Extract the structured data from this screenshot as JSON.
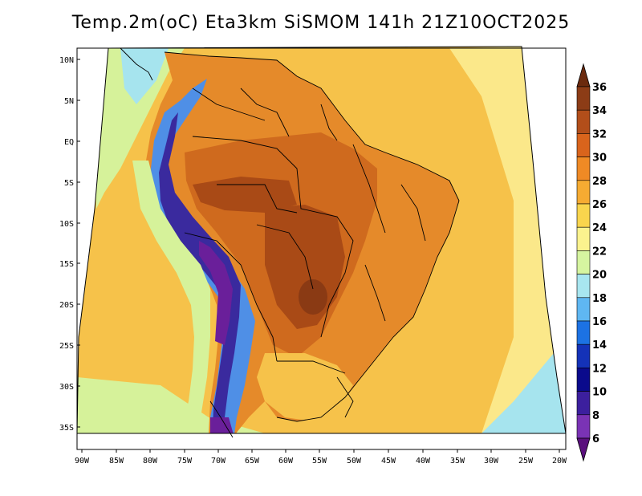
{
  "title": "Temp.2m(oC) Eta3km SiSMOM 141h 21Z10OCT2025",
  "map": {
    "variable": "Temp.2m",
    "units": "oC",
    "model": "Eta3km SiSMOM",
    "forecast_hour": "141h",
    "valid_time": "21Z10OCT2025",
    "region": "South America",
    "lon_labels": [
      "90W",
      "85W",
      "80W",
      "75W",
      "70W",
      "65W",
      "60W",
      "55W",
      "50W",
      "45W",
      "40W",
      "35W",
      "30W",
      "25W",
      "20W"
    ],
    "lat_labels": [
      "10N",
      "5N",
      "EQ",
      "5S",
      "10S",
      "15S",
      "20S",
      "25S",
      "30S",
      "35S"
    ]
  },
  "colorbar": {
    "labels": [
      "36",
      "34",
      "32",
      "30",
      "28",
      "26",
      "24",
      "22",
      "20",
      "18",
      "16",
      "14",
      "12",
      "10",
      "8",
      "6"
    ],
    "colors": [
      "#6b2a0e",
      "#8c3c16",
      "#b24e1a",
      "#d9641c",
      "#ef8a25",
      "#f6ab32",
      "#f9d54d",
      "#fbf38e",
      "#d6f5a0",
      "#a8e6f0",
      "#5fb7f2",
      "#1c72e3",
      "#1432b8",
      "#0a0a8c",
      "#3c1f9e",
      "#7a33b5",
      "#5a0f7d"
    ]
  },
  "palette": {
    "ocean": "#f6c24a",
    "sea_far": "#fbe88a",
    "land_low": "#e58a2a",
    "land_warm": "#cf6a1e",
    "land_hot": "#a94a16",
    "land_hottest": "#8a3a14",
    "andes_cool": "#4f8fe6",
    "andes_cold": "#3a2a9e",
    "andes_ice": "#6a1f9a",
    "coast_green": "#d6f29a",
    "coast_cyan": "#a6e4ee"
  }
}
